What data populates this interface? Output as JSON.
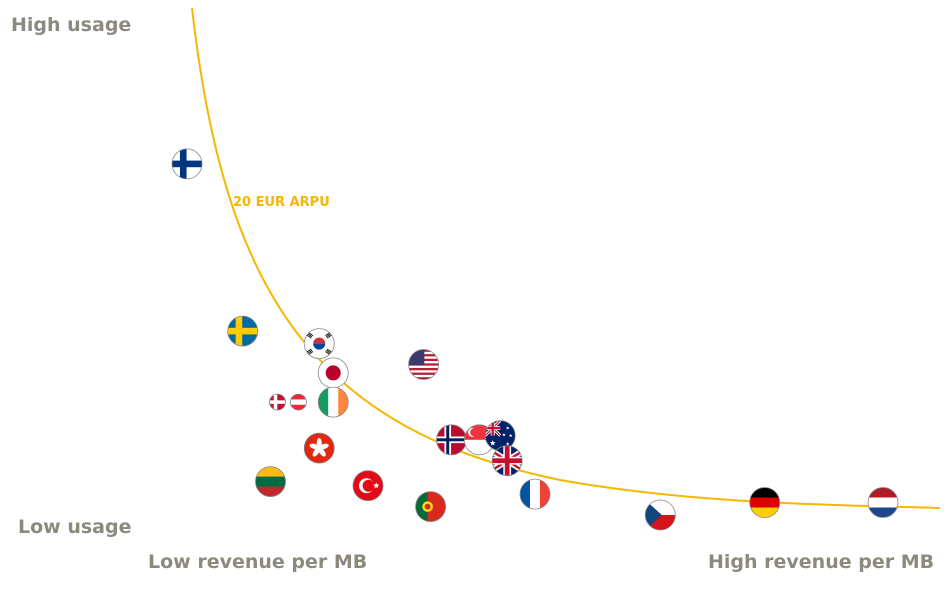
{
  "chart_data": {
    "type": "scatter",
    "title": "",
    "y_axis": {
      "high_label": "High usage",
      "low_label": "Low usage"
    },
    "x_axis": {
      "low_label": "Low revenue per MB",
      "high_label": "High revenue per MB"
    },
    "curve": {
      "label": "20 EUR ARPU",
      "color": "#f5b800"
    },
    "points": [
      {
        "flag": "finland-flag",
        "x": 0.0,
        "y": 0.84
      },
      {
        "flag": "sweden-flag",
        "x": 0.08,
        "y": 0.44
      },
      {
        "flag": "south-korea-flag",
        "x": 0.19,
        "y": 0.41
      },
      {
        "flag": "japan-flag",
        "x": 0.21,
        "y": 0.34
      },
      {
        "flag": "usa-flag",
        "x": 0.34,
        "y": 0.36
      },
      {
        "flag": "ireland-flag",
        "x": 0.21,
        "y": 0.27
      },
      {
        "flag": "denmark-flag",
        "x": 0.13,
        "y": 0.27
      },
      {
        "flag": "austria-flag",
        "x": 0.16,
        "y": 0.27
      },
      {
        "flag": "hong-kong-flag",
        "x": 0.19,
        "y": 0.16
      },
      {
        "flag": "norway-flag",
        "x": 0.38,
        "y": 0.18
      },
      {
        "flag": "singapore-flag",
        "x": 0.42,
        "y": 0.18
      },
      {
        "flag": "australia-flag",
        "x": 0.45,
        "y": 0.19
      },
      {
        "flag": "uk-flag",
        "x": 0.46,
        "y": 0.13
      },
      {
        "flag": "lithuania-flag",
        "x": 0.12,
        "y": 0.08
      },
      {
        "flag": "turkey-flag",
        "x": 0.26,
        "y": 0.07
      },
      {
        "flag": "portugal-flag",
        "x": 0.35,
        "y": 0.02
      },
      {
        "flag": "france-flag",
        "x": 0.5,
        "y": 0.05
      },
      {
        "flag": "czech-flag",
        "x": 0.68,
        "y": 0.0
      },
      {
        "flag": "germany-flag",
        "x": 0.83,
        "y": 0.03
      },
      {
        "flag": "netherlands-flag",
        "x": 1.0,
        "y": 0.03
      }
    ],
    "xlim": [
      0,
      1
    ],
    "ylim": [
      0,
      1
    ]
  }
}
